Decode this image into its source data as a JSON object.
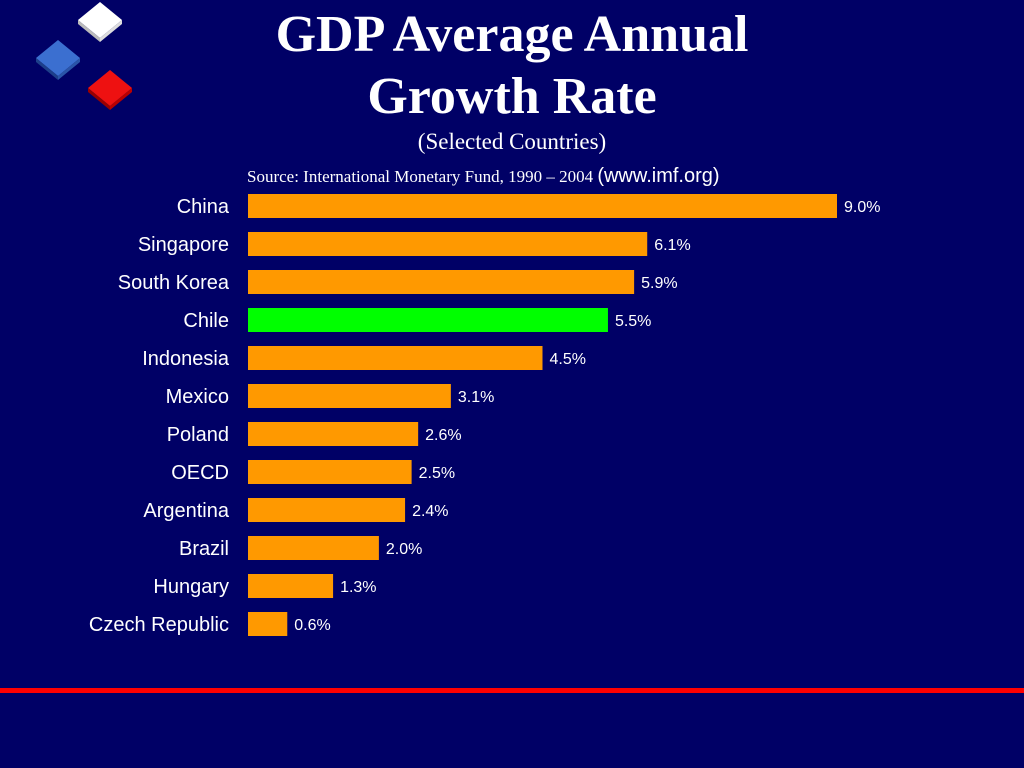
{
  "title": {
    "line1": "GDP Average Annual",
    "line2": "Growth Rate"
  },
  "subtitle": "(Selected Countries)",
  "source": {
    "text": "Source: International Monetary Fund, 1990 – 2004",
    "url": "(www.imf.org)"
  },
  "colors": {
    "background": "#000066",
    "bar_default": "#ff9900",
    "bar_highlight": "#00ff00",
    "rule": "#ff0000",
    "text": "#ffffff",
    "cube_top": "#ffffff",
    "cube_mid": "#3366cc",
    "cube_bottom": "#ee0000"
  },
  "chart_data": {
    "type": "bar",
    "orientation": "horizontal",
    "categories": [
      "China",
      "Singapore",
      "South Korea",
      "Chile",
      "Indonesia",
      "Mexico",
      "Poland",
      "OECD",
      "Argentina",
      "Brazil",
      "Hungary",
      "Czech Republic"
    ],
    "values": [
      9.0,
      6.1,
      5.9,
      5.5,
      4.5,
      3.1,
      2.6,
      2.5,
      2.4,
      2.0,
      1.3,
      0.6
    ],
    "labels": [
      "9.0%",
      "6.1%",
      "5.9%",
      "5.5%",
      "4.5%",
      "3.1%",
      "2.6%",
      "2.5%",
      "2.4%",
      "2.0%",
      "1.3%",
      "0.6%"
    ],
    "highlight": "Chile",
    "unit": "%",
    "xlim": [
      0,
      9.0
    ],
    "grid": false,
    "legend": "none"
  }
}
